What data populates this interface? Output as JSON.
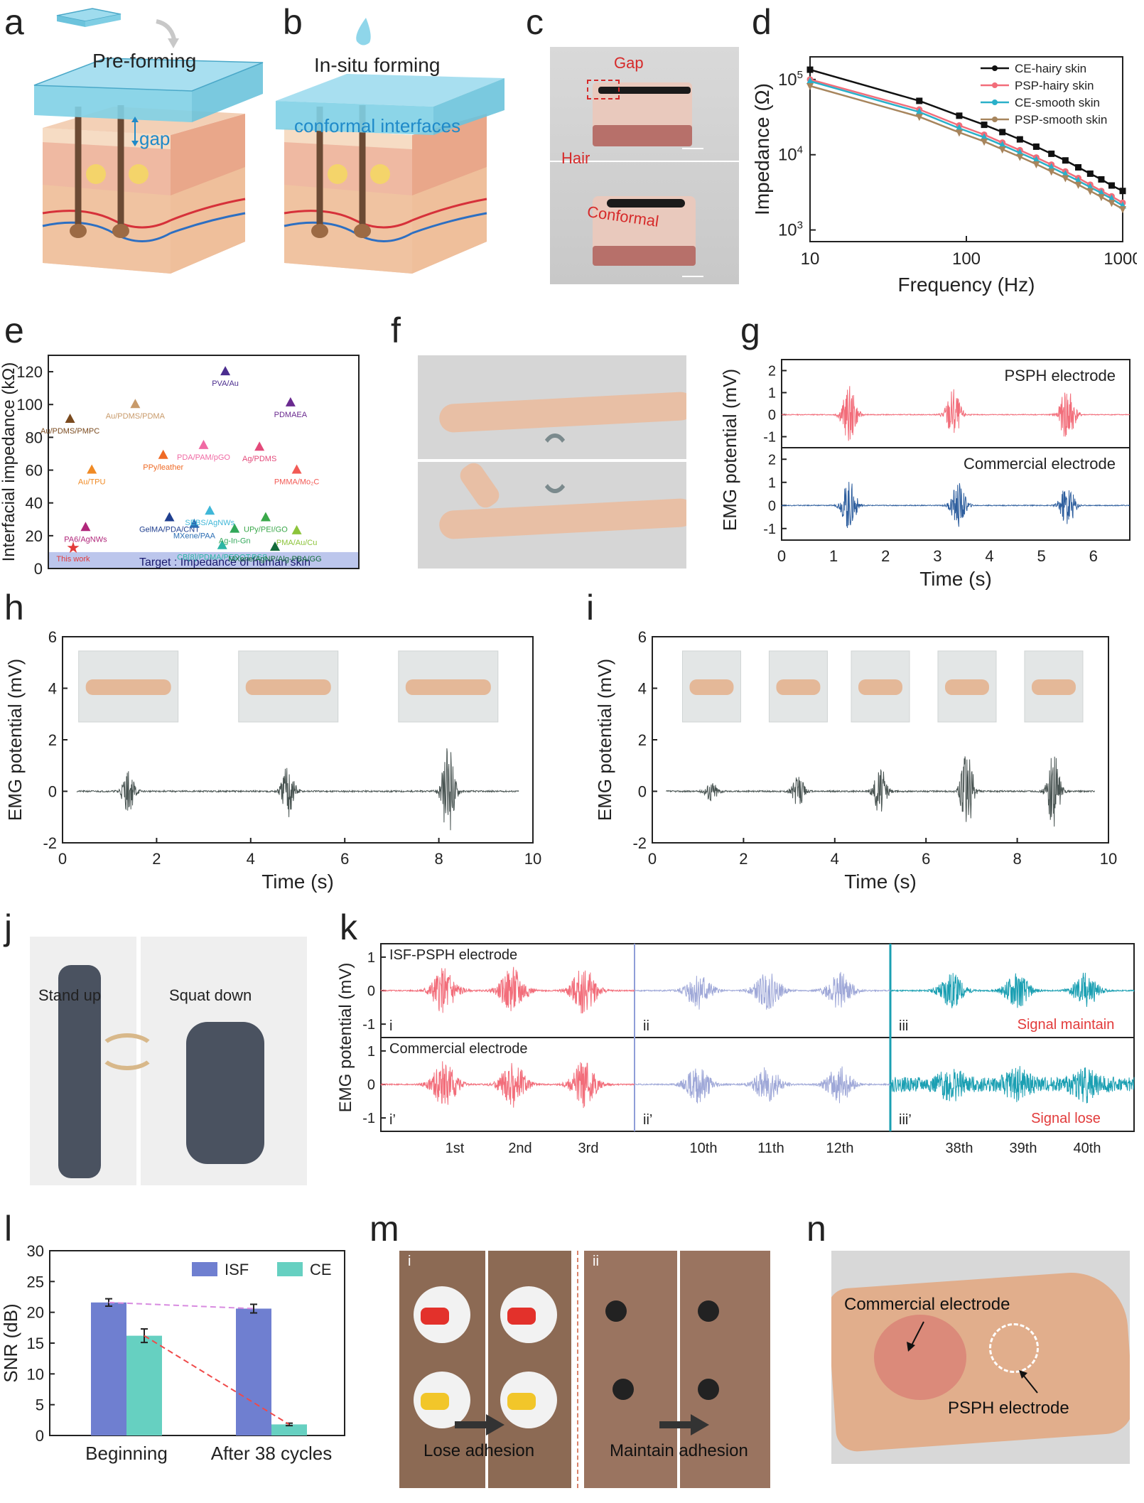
{
  "panel_letters": [
    "a",
    "b",
    "c",
    "d",
    "e",
    "f",
    "g",
    "h",
    "i",
    "j",
    "k",
    "l",
    "m",
    "n"
  ],
  "a": {
    "title": "Pre-forming",
    "gap_label": "gap"
  },
  "b": {
    "title": "In-situ forming",
    "interface_label": "conformal interfaces"
  },
  "c": {
    "gap_label": "Gap",
    "hair_label": "Hair",
    "conformal_label": "Conformal"
  },
  "colors": {
    "red": "#e23b3b",
    "pink": "#f26d7a",
    "blue_trace": "#2f5f9e",
    "lav": "#9fa8d8",
    "teal": "#1a9fb2",
    "gray_trace": "#4a5553",
    "isf_bar": "#6f7fd0",
    "ce_bar": "#66d0c1",
    "water": "#8fd6ea"
  },
  "chart_data": [
    {
      "panel": "d",
      "type": "line",
      "xlabel": "Frequency (Hz)",
      "ylabel": "Impedance (Ω)",
      "xscale": "log",
      "yscale": "log",
      "xlim": [
        10,
        1000
      ],
      "ylim": [
        700,
        200000
      ],
      "x_ticks": [
        "10",
        "100",
        "1000"
      ],
      "y_ticks": [
        "10",
        "10",
        "10"
      ],
      "y_tick_exps": [
        "3",
        "4",
        "5"
      ],
      "x": [
        10,
        50,
        90,
        130,
        170,
        220,
        280,
        350,
        430,
        520,
        620,
        730,
        850,
        1000
      ],
      "series": [
        {
          "name": "CE-hairy skin",
          "color": "#111111",
          "marker": "square",
          "values": [
            135000,
            52000,
            33000,
            25000,
            20000,
            16000,
            12800,
            10300,
            8400,
            6800,
            5600,
            4700,
            3900,
            3300
          ]
        },
        {
          "name": "PSP-hairy skin",
          "color": "#f26d7a",
          "marker": "circle",
          "values": [
            100000,
            40000,
            24500,
            18500,
            14500,
            11500,
            9200,
            7400,
            6000,
            4900,
            4000,
            3300,
            2800,
            2300
          ]
        },
        {
          "name": "CE-smooth skin",
          "color": "#2ab0c9",
          "marker": "triangle",
          "values": [
            95000,
            37000,
            22500,
            17000,
            13400,
            10600,
            8500,
            6800,
            5500,
            4500,
            3700,
            3100,
            2600,
            2100
          ]
        },
        {
          "name": "PSP-smooth skin",
          "color": "#a7855d",
          "marker": "triangle-down",
          "values": [
            82000,
            32000,
            19800,
            15000,
            11800,
            9400,
            7500,
            6000,
            4900,
            4000,
            3300,
            2750,
            2300,
            1900
          ]
        }
      ]
    },
    {
      "panel": "e",
      "type": "scatter",
      "ylabel": "Interfacial impedance (kΩ)",
      "ylim": [
        0,
        130
      ],
      "y_ticks": [
        "0",
        "20",
        "40",
        "60",
        "80",
        "100",
        "120"
      ],
      "band_label": "Target : Impedance of human skin",
      "points": [
        {
          "label": "This work",
          "x": 0.08,
          "y": 13,
          "color": "#e23b3b",
          "marker": "star"
        },
        {
          "label": "PA6/AgNWs",
          "x": 0.12,
          "y": 25,
          "color": "#b0267a",
          "marker": "triangle"
        },
        {
          "label": "Au/TPU",
          "x": 0.14,
          "y": 60,
          "color": "#f08a24",
          "marker": "triangle"
        },
        {
          "label": "Au/PDMS/PMPC",
          "x": 0.07,
          "y": 91,
          "color": "#7a4a1e",
          "marker": "triangle"
        },
        {
          "label": "Au/PDMS/PDMA",
          "x": 0.28,
          "y": 100,
          "color": "#c89a6a",
          "marker": "triangle"
        },
        {
          "label": "PPy/leather",
          "x": 0.37,
          "y": 69,
          "color": "#ef6a25",
          "marker": "triangle"
        },
        {
          "label": "GelMA/PDA/CNT",
          "x": 0.39,
          "y": 31,
          "color": "#1f3f8f",
          "marker": "triangle"
        },
        {
          "label": "MXene/PAA",
          "x": 0.47,
          "y": 27,
          "color": "#2a6db3",
          "marker": "triangle"
        },
        {
          "label": "CB[8]/PDMA/PEDOT:PSS",
          "x": 0.56,
          "y": 14,
          "color": "#2cb5a5",
          "marker": "triangle"
        },
        {
          "label": "SEBS/AgNWs",
          "x": 0.52,
          "y": 35,
          "color": "#3fb7d8",
          "marker": "triangle"
        },
        {
          "label": "PDA/PAM/pGO",
          "x": 0.5,
          "y": 75,
          "color": "#f06aa4",
          "marker": "triangle"
        },
        {
          "label": "PVA/Au",
          "x": 0.57,
          "y": 120,
          "color": "#4b2d8f",
          "marker": "triangle"
        },
        {
          "label": "Ag-In-Gn",
          "x": 0.6,
          "y": 24,
          "color": "#32a85a",
          "marker": "triangle"
        },
        {
          "label": "Ag/PDMS",
          "x": 0.68,
          "y": 74,
          "color": "#e34a7a",
          "marker": "triangle"
        },
        {
          "label": "UPy/PEI/GO",
          "x": 0.7,
          "y": 31,
          "color": "#3aa84a",
          "marker": "triangle"
        },
        {
          "label": "MXene/AgNP/Alg-PBA/GG",
          "x": 0.73,
          "y": 13,
          "color": "#136b3a",
          "marker": "triangle"
        },
        {
          "label": "PDMAEA",
          "x": 0.78,
          "y": 101,
          "color": "#6a2a8f",
          "marker": "triangle"
        },
        {
          "label": "PMMA/Mo₂C",
          "x": 0.8,
          "y": 60,
          "color": "#f25a55",
          "marker": "triangle"
        },
        {
          "label": "PMA/Au/Cu",
          "x": 0.8,
          "y": 23,
          "color": "#8cc43a",
          "marker": "triangle"
        }
      ]
    },
    {
      "panel": "g",
      "type": "line",
      "xlabel": "Time (s)",
      "ylabel": "EMG potential (mV)",
      "xlim": [
        0,
        6.7
      ],
      "ylim": [
        -1.5,
        2.5
      ],
      "x_ticks": [
        "0",
        "1",
        "2",
        "3",
        "4",
        "5",
        "6"
      ],
      "y_ticks": [
        "-1",
        "0",
        "1",
        "2"
      ],
      "series": [
        {
          "name": "PSPH electrode",
          "color": "#f26d7a",
          "bursts": [
            {
              "t": 1.3,
              "amp": 1.3
            },
            {
              "t": 3.3,
              "amp": 1.2
            },
            {
              "t": 5.5,
              "amp": 1.4
            }
          ]
        },
        {
          "name": "Commercial electrode",
          "color": "#2f5f9e",
          "bursts": [
            {
              "t": 1.3,
              "amp": 1.1
            },
            {
              "t": 3.4,
              "amp": 1.0
            },
            {
              "t": 5.5,
              "amp": 1.0
            }
          ]
        }
      ]
    },
    {
      "panel": "h",
      "type": "line",
      "xlabel": "Time (s)",
      "ylabel": "EMG potential (mV)",
      "xlim": [
        0,
        10
      ],
      "ylim": [
        -2,
        6
      ],
      "x_ticks": [
        "0",
        "2",
        "4",
        "6",
        "8",
        "10"
      ],
      "y_ticks": [
        "-2",
        "0",
        "2",
        "4",
        "6"
      ],
      "series": [
        {
          "color": "#4a5553",
          "bursts": [
            {
              "t": 1.4,
              "amp": 0.8
            },
            {
              "t": 4.8,
              "amp": 1.1
            },
            {
              "t": 8.2,
              "amp": 1.8
            }
          ]
        }
      ]
    },
    {
      "panel": "i",
      "type": "line",
      "xlabel": "Time (s)",
      "ylabel": "EMG potential (mV)",
      "xlim": [
        0,
        10
      ],
      "ylim": [
        -2,
        6
      ],
      "x_ticks": [
        "0",
        "2",
        "4",
        "6",
        "8",
        "10"
      ],
      "y_ticks": [
        "-2",
        "0",
        "2",
        "4",
        "6"
      ],
      "series": [
        {
          "color": "#4a5553",
          "bursts": [
            {
              "t": 1.3,
              "amp": 0.4
            },
            {
              "t": 3.2,
              "amp": 0.6
            },
            {
              "t": 5.0,
              "amp": 1.0
            },
            {
              "t": 6.9,
              "amp": 1.6
            },
            {
              "t": 8.8,
              "amp": 1.5
            }
          ]
        }
      ]
    },
    {
      "panel": "k",
      "type": "line",
      "ylabel": "EMG potential (mV)",
      "ylim": [
        -1.4,
        1.4
      ],
      "y_ticks": [
        "-1",
        "0",
        "1"
      ],
      "cycle_labels": [
        "1st",
        "2nd",
        "3rd",
        "10th",
        "11th",
        "12th",
        "38th",
        "39th",
        "40th"
      ],
      "top": {
        "name": "ISF-PSPH electrode",
        "roman": [
          "i",
          "ii",
          "iii"
        ],
        "note": "Signal maintain"
      },
      "bottom": {
        "name": "Commercial electrode",
        "roman": [
          "i’",
          "ii’",
          "iii’"
        ],
        "note": "Signal lose"
      }
    },
    {
      "panel": "l",
      "type": "bar",
      "ylabel": "SNR (dB)",
      "ylim": [
        0,
        30
      ],
      "y_ticks": [
        "0",
        "5",
        "10",
        "15",
        "20",
        "25",
        "30"
      ],
      "categories": [
        "Beginning",
        "After 38 cycles"
      ],
      "series": [
        {
          "name": "ISF",
          "color": "#6f7fd0",
          "values": [
            21.6,
            20.6
          ],
          "errors": [
            0.6,
            0.7
          ]
        },
        {
          "name": "CE",
          "color": "#66d0c1",
          "values": [
            16.2,
            1.8
          ],
          "errors": [
            1.1,
            0.2
          ]
        }
      ]
    }
  ],
  "m": {
    "i_label": "i",
    "ii_label": "ii",
    "lose": "Lose adhesion",
    "maintain": "Maintain adhesion"
  },
  "n": {
    "commercial": "Commercial  electrode",
    "psph": "PSPH electrode"
  },
  "j": {
    "stand": "Stand up",
    "squat": "Squat down"
  }
}
